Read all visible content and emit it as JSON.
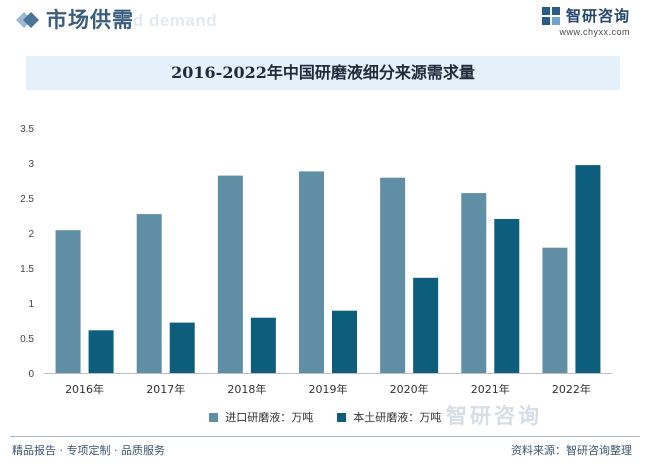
{
  "header": {
    "title": "市场供需",
    "title_shadow": "and demand",
    "brand_name": "智研咨询",
    "brand_url": "www.chyxx.com"
  },
  "chart_data": {
    "type": "bar",
    "title": "2016-2022年中国研磨液细分来源需求量",
    "categories": [
      "2016年",
      "2017年",
      "2018年",
      "2019年",
      "2020年",
      "2021年",
      "2022年"
    ],
    "series": [
      {
        "name": "进口研磨液：万吨",
        "values": [
          2.04,
          2.27,
          2.82,
          2.88,
          2.79,
          2.57,
          1.79
        ],
        "color": "#5f8ea5"
      },
      {
        "name": "本土研磨液：万吨",
        "values": [
          0.61,
          0.72,
          0.79,
          0.89,
          1.36,
          2.2,
          2.97
        ],
        "color": "#0d5e7d"
      }
    ],
    "ylim": [
      0,
      3.5
    ],
    "yticks": [
      "0",
      "0.5",
      "1",
      "1.5",
      "2",
      "2.5",
      "3",
      "3.5"
    ],
    "xlabel": "",
    "ylabel": "",
    "grid": false,
    "legend_position": "bottom"
  },
  "watermark": {
    "name": "智研咨询"
  },
  "footer": {
    "left": "精品报告 · 专项定制 · 品质服务",
    "right": "资料来源：智研咨询整理"
  }
}
